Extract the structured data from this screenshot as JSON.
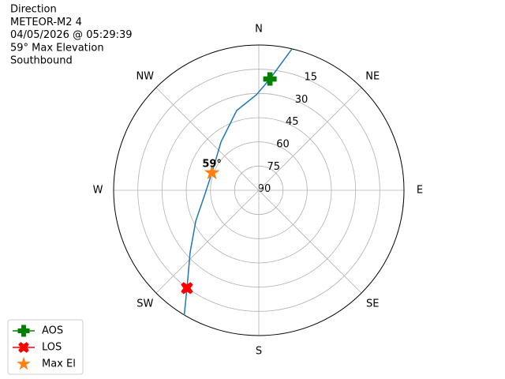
{
  "chart_data": {
    "type": "polar",
    "title_lines": [
      "Direction",
      "METEOR-M2 4",
      "04/05/2026 @ 05:29:39",
      "59° Max Elevation",
      "Southbound"
    ],
    "rlim": [
      90,
      0
    ],
    "rticks": [
      15,
      30,
      45,
      60,
      75,
      90
    ],
    "thetaticks": [
      {
        "value": 0,
        "label": "N"
      },
      {
        "value": 45,
        "label": "NE"
      },
      {
        "value": 90,
        "label": "E"
      },
      {
        "value": 135,
        "label": "SE"
      },
      {
        "value": 180,
        "label": "S"
      },
      {
        "value": 225,
        "label": "SW"
      },
      {
        "value": 270,
        "label": "W"
      },
      {
        "value": 315,
        "label": "NW"
      }
    ],
    "grid": true,
    "track": {
      "color": "#1f77b4",
      "azimuth": [
        13.2,
        5.7,
        358.6,
        344.5,
        321.8,
        290.5,
        266.6,
        244,
        227.8,
        216.3,
        210.9
      ],
      "elevation": [
        0,
        20.7,
        30.8,
        38.7,
        52,
        59,
        56.7,
        46.5,
        32.5,
        14.8,
        0
      ]
    },
    "series": [
      {
        "name": "AOS",
        "color": "#008000",
        "marker": "plus",
        "azimuth": [
          5.7
        ],
        "elevation": [
          20.7
        ]
      },
      {
        "name": "LOS",
        "color": "#ff0000",
        "marker": "x",
        "azimuth": [
          216.3
        ],
        "elevation": [
          14.8
        ]
      },
      {
        "name": "Max El",
        "color": "#ff7f0e",
        "marker": "star",
        "azimuth": [
          290.5
        ],
        "elevation": [
          59
        ],
        "value_labels": [
          "59°"
        ]
      }
    ],
    "legend": "lower left"
  }
}
